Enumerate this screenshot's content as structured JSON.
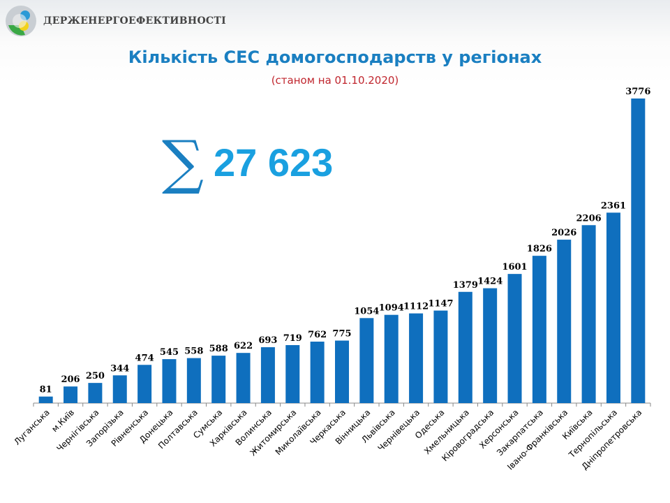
{
  "header": {
    "org_name": "ДЕРЖЕНЕРГОЕФЕКТИВНОСТІ"
  },
  "total": {
    "symbol": "∑",
    "value": "27 623"
  },
  "colors": {
    "bar": "#0f6fbe",
    "title": "#1a7fc1",
    "subtitle": "#c0262e"
  },
  "chart_data": {
    "type": "bar",
    "title": "Кількість СЕС домогосподарств у регіонах",
    "subtitle": "(станом на 01.10.2020)",
    "xlabel": "",
    "ylabel": "",
    "ylim": [
      0,
      3776
    ],
    "grid": false,
    "categories": [
      "Луганська",
      "м.Київ",
      "Чернігівська",
      "Запорізька",
      "Рівненська",
      "Донецька",
      "Полтавська",
      "Сумська",
      "Харківська",
      "Волинська",
      "Житомирська",
      "Миколаївська",
      "Черкаська",
      "Вінницька",
      "Львівська",
      "Чернівецька",
      "Одеська",
      "Хмельницька",
      "Кіровоградська",
      "Херсонська",
      "Закарпатська",
      "Івано-Франківська",
      "Київська",
      "Тернопільська",
      "Дніпропетровська"
    ],
    "values": [
      81,
      206,
      250,
      344,
      474,
      545,
      558,
      588,
      622,
      693,
      719,
      762,
      775,
      1054,
      1094,
      1112,
      1147,
      1379,
      1424,
      1601,
      1826,
      2026,
      2206,
      2361,
      3776
    ]
  }
}
